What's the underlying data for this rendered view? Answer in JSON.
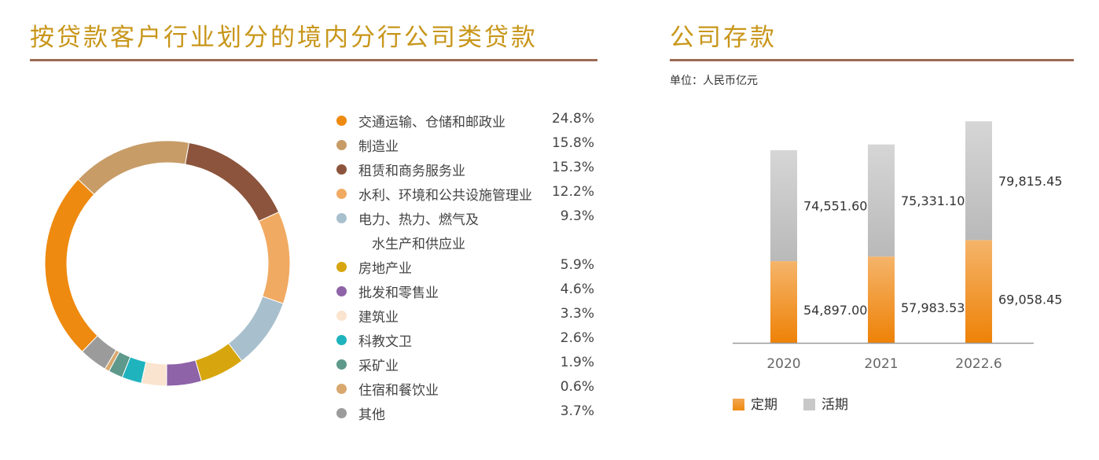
{
  "left_title": "按贷款客户行业划分的境内分行公司类贷款",
  "right_title": "公司存款",
  "unit_text": "单位：人民币亿元",
  "chart_data": [
    {
      "type": "pie",
      "title": "按贷款客户行业划分的境内分行公司类贷款",
      "slices": [
        {
          "label": "交通运输、仓储和邮政业",
          "value": 24.8,
          "display": "24.8%",
          "color": "#ee8a0f"
        },
        {
          "label": "制造业",
          "value": 15.8,
          "display": "15.8%",
          "color": "#c79c67"
        },
        {
          "label": "租赁和商务服务业",
          "value": 15.3,
          "display": "15.3%",
          "color": "#8c543c"
        },
        {
          "label": "水利、环境和公共设施管理业",
          "value": 12.2,
          "display": "12.2%",
          "color": "#f1aa62"
        },
        {
          "label": "电力、热力、燃气及",
          "label2": "水生产和供应业",
          "value": 9.3,
          "display": "9.3%",
          "color": "#a8bfcd"
        },
        {
          "label": "房地产业",
          "value": 5.9,
          "display": "5.9%",
          "color": "#d7a50e"
        },
        {
          "label": "批发和零售业",
          "value": 4.6,
          "display": "4.6%",
          "color": "#8e63a8"
        },
        {
          "label": "建筑业",
          "value": 3.3,
          "display": "3.3%",
          "color": "#fbe4cf"
        },
        {
          "label": "科教文卫",
          "value": 2.6,
          "display": "2.6%",
          "color": "#1fb3be"
        },
        {
          "label": "采矿业",
          "value": 1.9,
          "display": "1.9%",
          "color": "#5e998b"
        },
        {
          "label": "住宿和餐饮业",
          "value": 0.6,
          "display": "0.6%",
          "color": "#d9a86e"
        },
        {
          "label": "其他",
          "value": 3.7,
          "display": "3.7%",
          "color": "#9b9b9b"
        }
      ],
      "legend_position": "right"
    },
    {
      "type": "bar",
      "stacked": true,
      "title": "公司存款",
      "unit": "单位：人民币亿元",
      "categories": [
        "2020",
        "2021",
        "2022.6"
      ],
      "series": [
        {
          "name": "定期",
          "values": [
            54897.0,
            57983.53,
            69058.45
          ],
          "labels": [
            "54,897.00",
            "57,983.53",
            "69,058.45"
          ],
          "color": "#ee8a0f"
        },
        {
          "name": "活期",
          "values": [
            74551.6,
            75331.1,
            79815.45
          ],
          "labels": [
            "74,551.60",
            "75,331.10",
            "79,815.45"
          ],
          "color": "#c8c8c8"
        }
      ],
      "legend_position": "bottom"
    }
  ]
}
